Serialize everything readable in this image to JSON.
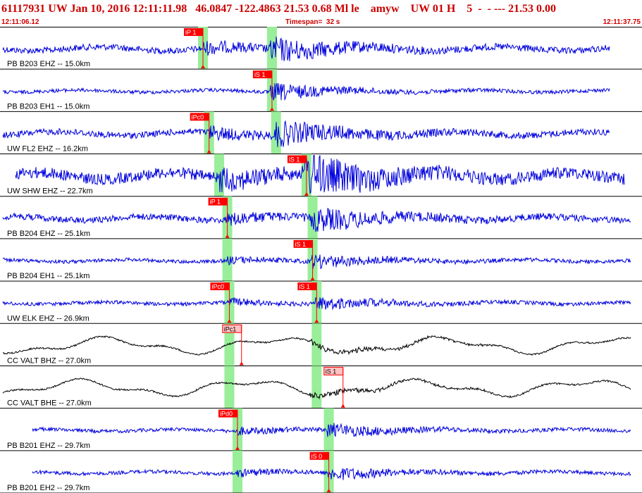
{
  "header": {
    "title_line": "61117931 UW Jan 10, 2016 12:11:11.98   46.0847 -122.4863 21.53 0.68 Ml le    amyw    UW 01 H    5  -  - --- 21.53 0.00",
    "start_time": "12:11:06.12",
    "timespan": "Timespan=  32 s",
    "end_time": "12:11:37.75"
  },
  "colors": {
    "header_text": "#cc0000",
    "trace_blue": "#0000dd",
    "trace_black": "#000000",
    "pick_green": "#99ee99",
    "pick_red": "#ff0000",
    "pick_label_light": "#ffc0c0",
    "separator": "#000000"
  },
  "time_axis": {
    "start_s": 0,
    "end_s": 31.63
  },
  "channels": [
    {
      "label": "PB B203 EHZ -- 15.0km",
      "color": "blue",
      "amplitude": "medium",
      "green_bands_s": [
        10.0,
        13.4
      ],
      "picks": [
        {
          "label": "iP 1",
          "time_s": 10.0,
          "style": "solid"
        }
      ]
    },
    {
      "label": "PB B203 EH1 -- 15.0km",
      "color": "blue",
      "amplitude": "small",
      "green_bands_s": [
        13.4
      ],
      "picks": [
        {
          "label": "iS 1",
          "time_s": 13.4,
          "style": "solid"
        }
      ]
    },
    {
      "label": "UW FL2 EHZ -- 16.2km",
      "color": "blue",
      "amplitude": "medium",
      "green_bands_s": [
        10.3,
        13.6
      ],
      "picks": [
        {
          "label": "iPc0",
          "time_s": 10.3,
          "style": "solid"
        }
      ]
    },
    {
      "label": "UW SHW EHZ -- 22.7km",
      "color": "blue",
      "amplitude": "large",
      "green_bands_s": [
        10.8,
        15.1
      ],
      "picks": [
        {
          "label": "iS 1",
          "time_s": 15.1,
          "style": "solid"
        }
      ]
    },
    {
      "label": "PB B204 EHZ -- 25.1km",
      "color": "blue",
      "amplitude": "medium",
      "green_bands_s": [
        11.2,
        15.4
      ],
      "picks": [
        {
          "label": "iP 1",
          "time_s": 11.2,
          "style": "solid"
        }
      ]
    },
    {
      "label": "PB B204 EH1 -- 25.1km",
      "color": "blue",
      "amplitude": "small",
      "green_bands_s": [
        11.2,
        15.4
      ],
      "picks": [
        {
          "label": "iS 1",
          "time_s": 15.4,
          "style": "solid"
        }
      ]
    },
    {
      "label": "UW ELK EHZ -- 26.9km",
      "color": "blue",
      "amplitude": "small",
      "green_bands_s": [
        11.3,
        15.6
      ],
      "picks": [
        {
          "label": "iPc0",
          "time_s": 11.3,
          "style": "solid"
        },
        {
          "label": "iS 1",
          "time_s": 15.6,
          "style": "solid"
        }
      ]
    },
    {
      "label": "CC VALT BHZ -- 27.0km",
      "color": "black",
      "amplitude": "long_period",
      "green_bands_s": [
        11.3,
        15.6
      ],
      "picks": [
        {
          "label": "iPc1",
          "time_s": 11.9,
          "style": "light"
        }
      ]
    },
    {
      "label": "CC VALT BHE -- 27.0km",
      "color": "black",
      "amplitude": "long_period",
      "green_bands_s": [
        11.3,
        15.6
      ],
      "picks": [
        {
          "label": "iS 1",
          "time_s": 16.9,
          "style": "light"
        }
      ]
    },
    {
      "label": "PB B201 EHZ -- 29.7km",
      "color": "blue",
      "amplitude": "small",
      "green_bands_s": [
        11.7,
        16.2
      ],
      "picks": [
        {
          "label": "iPd0",
          "time_s": 11.7,
          "style": "solid"
        }
      ]
    },
    {
      "label": "PB B201 EH2 -- 29.7km",
      "color": "blue",
      "amplitude": "small",
      "green_bands_s": [
        11.7,
        16.2
      ],
      "picks": [
        {
          "label": "iS 0",
          "time_s": 16.2,
          "style": "solid"
        }
      ]
    }
  ]
}
